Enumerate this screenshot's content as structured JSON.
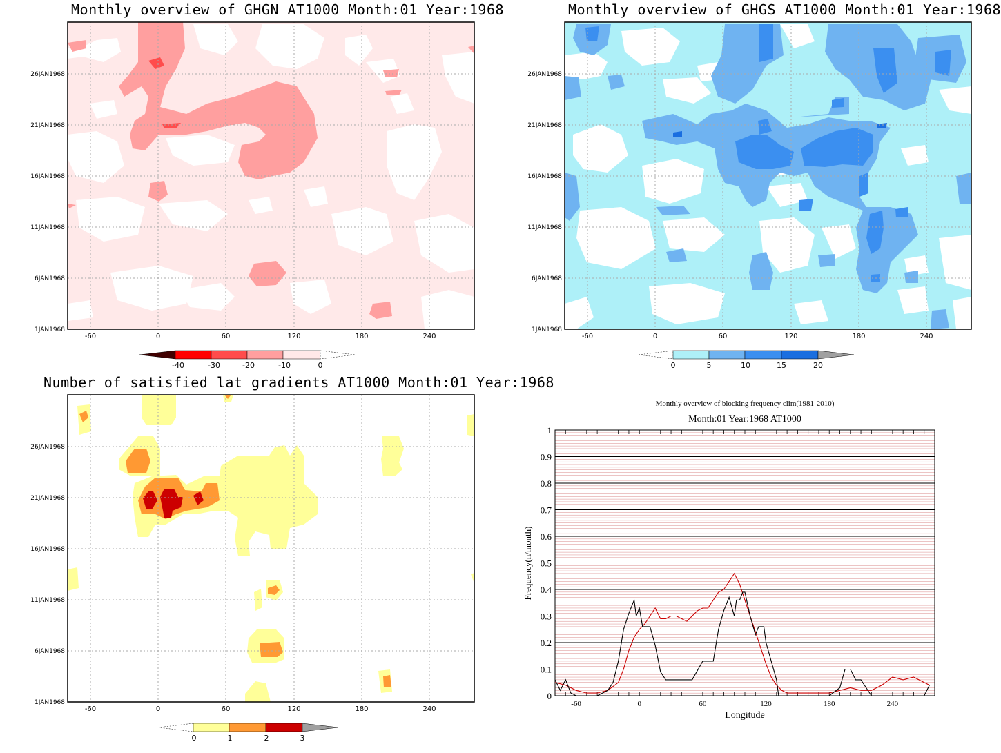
{
  "panels": {
    "ghgn": {
      "title": "Monthly overview of GHGN AT1000 Month:01 Year:1968",
      "ytick_labels": [
        "1JAN1968",
        "6JAN1968",
        "11JAN1968",
        "16JAN1968",
        "21JAN1968",
        "26JAN1968"
      ],
      "xtick_labels": [
        "-60",
        "0",
        "60",
        "120",
        "180",
        "240"
      ],
      "colorbar": {
        "labels": [
          "-40",
          "-30",
          "-20",
          "-10",
          "0"
        ],
        "colors": [
          "#500000",
          "#ff0000",
          "#ff4c4c",
          "#ff9f9f",
          "#ffe9e9"
        ],
        "over_color": "#ffffff",
        "under_color": "#400000"
      },
      "fill_colors": {
        "light": "#ffe9e9",
        "mid": "#ff9f9f",
        "dark": "#ff4c4c"
      }
    },
    "ghgs": {
      "title": "Monthly overview of GHGS AT1000 Month:01 Year:1968",
      "ytick_labels": [
        "1JAN1968",
        "6JAN1968",
        "11JAN1968",
        "16JAN1968",
        "21JAN1968",
        "26JAN1968"
      ],
      "xtick_labels": [
        "-60",
        "0",
        "60",
        "120",
        "180",
        "240"
      ],
      "colorbar": {
        "labels": [
          "0",
          "5",
          "10",
          "15",
          "20"
        ],
        "colors": [
          "#aef0f8",
          "#6fb3f1",
          "#3b8ff0",
          "#1a6ee0"
        ],
        "over_color": "#a0a0a0"
      },
      "fill_colors": {
        "light": "#aef0f8",
        "mid": "#6fb3f1",
        "dark": "#3b8ff0",
        "darkest": "#1a6ee0"
      }
    },
    "gradients": {
      "title": "Number of satisfied lat gradients AT1000 Month:01 Year:1968",
      "ytick_labels": [
        "1JAN1968",
        "6JAN1968",
        "11JAN1968",
        "16JAN1968",
        "21JAN1968",
        "26JAN1968"
      ],
      "xtick_labels": [
        "-60",
        "0",
        "60",
        "120",
        "180",
        "240"
      ],
      "colorbar": {
        "labels": [
          "0",
          "1",
          "2",
          "3"
        ],
        "colors": [
          "#ffff99",
          "#ff9933",
          "#cc0000"
        ],
        "over_color": "#a0a0a0"
      },
      "fill_colors": {
        "light": "#ffff99",
        "mid": "#ff9933",
        "dark": "#cc0000"
      }
    },
    "blocking": {
      "title": "Monthly overview of blocking frequency clim(1981-2010)",
      "subtitle": "Month:01 Year:1968  AT1000",
      "xlabel": "Longitude",
      "ylabel": "Frequency(n/month)",
      "xtick_labels": [
        "-60",
        "0",
        "60",
        "120",
        "180",
        "240"
      ],
      "ytick_labels": [
        "0",
        "0.1",
        "0.2",
        "0.3",
        "0.4",
        "0.5",
        "0.6",
        "0.7",
        "0.8",
        "0.9",
        "1"
      ]
    }
  },
  "chart_data": [
    {
      "type": "heatmap",
      "title": "Monthly overview of GHGN AT1000 Month:01 Year:1968",
      "xlabel": "",
      "ylabel": "",
      "xlim": [
        -75,
        285
      ],
      "ylim": [
        "1JAN1968",
        "31JAN1968"
      ],
      "levels": [
        -40,
        -30,
        -20,
        -10,
        0
      ],
      "grid": true
    },
    {
      "type": "heatmap",
      "title": "Monthly overview of GHGS AT1000 Month:01 Year:1968",
      "xlabel": "",
      "ylabel": "",
      "xlim": [
        -75,
        285
      ],
      "ylim": [
        "1JAN1968",
        "31JAN1968"
      ],
      "levels": [
        0,
        5,
        10,
        15,
        20
      ],
      "grid": true
    },
    {
      "type": "heatmap",
      "title": "Number of satisfied lat gradients AT1000 Month:01 Year:1968",
      "xlabel": "",
      "ylabel": "",
      "xlim": [
        -75,
        285
      ],
      "ylim": [
        "1JAN1968",
        "31JAN1968"
      ],
      "levels": [
        0,
        1,
        2,
        3
      ],
      "grid": true
    },
    {
      "type": "line",
      "title": "Monthly overview of blocking frequency clim(1981-2010)",
      "subtitle": "Month:01 Year:1968  AT1000",
      "xlabel": "Longitude",
      "ylabel": "Frequency(n/month)",
      "xlim": [
        -80,
        280
      ],
      "ylim": [
        0,
        1
      ],
      "series": [
        {
          "color": "#cc0000",
          "x": [
            -80,
            -70,
            -60,
            -50,
            -40,
            -30,
            -20,
            -15,
            -10,
            -5,
            0,
            5,
            10,
            15,
            20,
            25,
            30,
            35,
            40,
            45,
            50,
            55,
            60,
            65,
            70,
            75,
            80,
            85,
            90,
            95,
            100,
            105,
            110,
            115,
            120,
            125,
            130,
            135,
            140,
            150,
            160,
            170,
            180,
            190,
            200,
            210,
            220,
            230,
            240,
            250,
            260,
            270,
            275
          ],
          "y": [
            0.05,
            0.04,
            0.02,
            0.01,
            0.01,
            0.02,
            0.05,
            0.1,
            0.17,
            0.22,
            0.25,
            0.27,
            0.3,
            0.33,
            0.29,
            0.29,
            0.3,
            0.3,
            0.29,
            0.28,
            0.3,
            0.32,
            0.33,
            0.33,
            0.36,
            0.39,
            0.4,
            0.43,
            0.46,
            0.42,
            0.36,
            0.3,
            0.24,
            0.18,
            0.12,
            0.07,
            0.04,
            0.02,
            0.01,
            0.01,
            0.01,
            0.01,
            0.01,
            0.02,
            0.03,
            0.02,
            0.02,
            0.04,
            0.07,
            0.06,
            0.07,
            0.05,
            0.04
          ]
        },
        {
          "color": "#000000",
          "x": [
            -80,
            -75,
            -70,
            -65,
            -60,
            -55,
            -50,
            -40,
            -35,
            -30,
            -25,
            -20,
            -15,
            -10,
            -5,
            -3,
            0,
            3,
            5,
            10,
            15,
            20,
            25,
            30,
            40,
            50,
            60,
            65,
            70,
            75,
            80,
            85,
            90,
            92,
            95,
            98,
            100,
            105,
            110,
            113,
            115,
            118,
            120,
            125,
            130,
            132,
            135,
            140,
            150,
            160,
            170,
            180,
            190,
            195,
            200,
            205,
            210,
            215,
            220,
            230,
            240,
            250,
            260,
            270,
            275
          ],
          "y": [
            0.06,
            0.02,
            0.06,
            0.01,
            0,
            0,
            0,
            0,
            0.01,
            0.02,
            0.05,
            0.13,
            0.25,
            0.31,
            0.36,
            0.3,
            0.33,
            0.26,
            0.26,
            0.26,
            0.19,
            0.09,
            0.06,
            0.06,
            0.06,
            0.06,
            0.13,
            0.13,
            0.13,
            0.25,
            0.32,
            0.37,
            0.3,
            0.36,
            0.36,
            0.39,
            0.39,
            0.3,
            0.23,
            0.26,
            0.26,
            0.26,
            0.2,
            0.13,
            0.06,
            0,
            0,
            0,
            0,
            0,
            0,
            0,
            0.03,
            0.1,
            0.1,
            0.06,
            0.06,
            0.03,
            0,
            0,
            0,
            0,
            0,
            0,
            0.04
          ]
        }
      ]
    }
  ]
}
